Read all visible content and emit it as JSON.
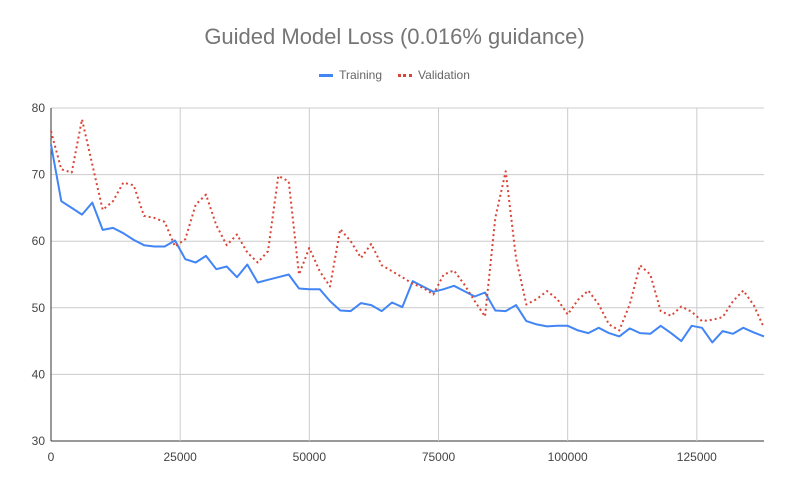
{
  "chart_data": {
    "type": "line",
    "title": "Guided Model Loss (0.016% guidance)",
    "xlabel": "",
    "ylabel": "",
    "xlim": [
      0,
      138000
    ],
    "ylim": [
      30,
      80
    ],
    "xticks": [
      0,
      25000,
      50000,
      75000,
      100000,
      125000
    ],
    "yticks": [
      30,
      40,
      50,
      60,
      70,
      80
    ],
    "grid": true,
    "legend_position": "top",
    "series": [
      {
        "name": "Training",
        "color": "#4285f4",
        "style": "solid",
        "x": [
          0,
          2000,
          4000,
          6000,
          8000,
          10000,
          12000,
          14000,
          16000,
          18000,
          20000,
          22000,
          24000,
          26000,
          28000,
          30000,
          32000,
          34000,
          36000,
          38000,
          40000,
          42000,
          44000,
          46000,
          48000,
          50000,
          52000,
          54000,
          56000,
          58000,
          60000,
          62000,
          64000,
          66000,
          68000,
          70000,
          72000,
          74000,
          76000,
          78000,
          80000,
          82000,
          84000,
          86000,
          88000,
          90000,
          92000,
          94000,
          96000,
          98000,
          100000,
          102000,
          104000,
          106000,
          108000,
          110000,
          112000,
          114000,
          116000,
          118000,
          120000,
          122000,
          124000,
          126000,
          128000,
          130000,
          132000,
          134000,
          136000,
          138000
        ],
        "values": [
          74.5,
          66,
          65,
          64,
          65.8,
          61.7,
          62,
          61.2,
          60.2,
          59.4,
          59.2,
          59.2,
          60.1,
          57.3,
          56.8,
          57.8,
          55.8,
          56.2,
          54.6,
          56.5,
          53.8,
          54.2,
          54.6,
          55,
          52.9,
          52.8,
          52.8,
          51,
          49.6,
          49.5,
          50.7,
          50.4,
          49.5,
          50.8,
          50.1,
          54,
          53.2,
          52.4,
          52.8,
          53.3,
          52.5,
          51.7,
          52.3,
          49.6,
          49.5,
          50.4,
          48,
          47.5,
          47.2,
          47.3,
          47.3,
          46.6,
          46.2,
          47,
          46.2,
          45.7,
          46.9,
          46.2,
          46.1,
          47.3,
          46.2,
          45,
          47.3,
          47,
          44.8,
          46.5,
          46.1,
          47,
          46.3,
          45.7
        ]
      },
      {
        "name": "Validation",
        "color": "#db4437",
        "style": "dotted",
        "x": [
          0,
          2000,
          4000,
          6000,
          8000,
          10000,
          12000,
          14000,
          16000,
          18000,
          20000,
          22000,
          24000,
          26000,
          28000,
          30000,
          32000,
          34000,
          36000,
          38000,
          40000,
          42000,
          44000,
          46000,
          48000,
          50000,
          52000,
          54000,
          56000,
          58000,
          60000,
          62000,
          64000,
          66000,
          68000,
          70000,
          72000,
          74000,
          76000,
          78000,
          80000,
          82000,
          84000,
          86000,
          88000,
          90000,
          92000,
          94000,
          96000,
          98000,
          100000,
          102000,
          104000,
          106000,
          108000,
          110000,
          112000,
          114000,
          116000,
          118000,
          120000,
          122000,
          124000,
          126000,
          128000,
          130000,
          132000,
          134000,
          136000,
          138000
        ],
        "values": [
          76.5,
          70.8,
          70.3,
          78.3,
          71.5,
          64.7,
          66,
          68.8,
          68.4,
          63.8,
          63.5,
          62.9,
          59.2,
          60.3,
          65.5,
          67,
          62.4,
          59.4,
          61,
          58.3,
          56.8,
          58.5,
          69.8,
          69,
          55,
          59,
          55.5,
          53.2,
          61.8,
          60,
          57.5,
          59.6,
          56.4,
          55.5,
          54.6,
          53.6,
          53,
          52,
          55,
          55.6,
          53.5,
          51,
          48.7,
          63.5,
          70.5,
          57.5,
          50.5,
          51.3,
          52.5,
          51.3,
          49,
          51.2,
          52.6,
          50.5,
          47.5,
          46.6,
          50.5,
          56.4,
          55,
          49.5,
          48.8,
          50.2,
          49.4,
          48,
          48.2,
          48.6,
          51,
          52.6,
          50.4,
          47
        ]
      }
    ]
  }
}
